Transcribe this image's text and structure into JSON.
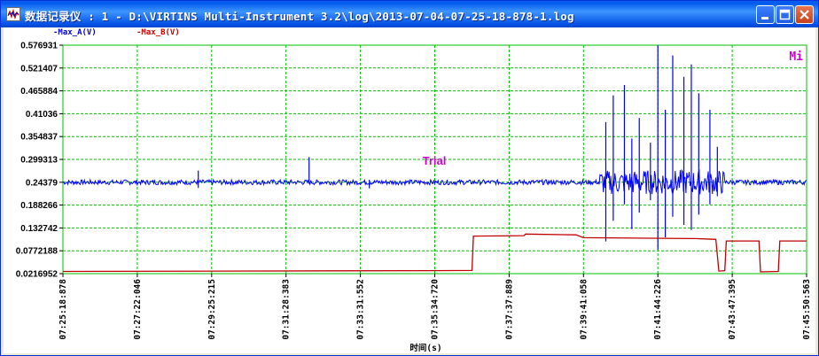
{
  "window": {
    "title": "数据记录仪 : 1 - D:\\VIRTINS Multi-Instrument 3.2\\log\\2013-07-04-07-25-18-878-1.log"
  },
  "legend": {
    "series_a": "-Max_A(V)",
    "series_b": "-Max_B(V)"
  },
  "overlay": {
    "watermark": "Trial",
    "corner_text": "Mi"
  },
  "chart_data": {
    "type": "line",
    "xlabel": "时间(s)",
    "ylabel": "",
    "x_ticks": [
      "07:25:18:878",
      "07:27:22:046",
      "07:29:25:215",
      "07:31:28:383",
      "07:33:31:552",
      "07:35:34:720",
      "07:37:37:889",
      "07:39:41:058",
      "07:41:44:226",
      "07:43:47:395",
      "07:45:50:563"
    ],
    "y_ticks": [
      "0.576931",
      "0.521407",
      "0.465884",
      "0.41036",
      "0.354837",
      "0.299313",
      "0.24379",
      "0.188266",
      "0.132742",
      "0.0772188",
      "0.0216952"
    ],
    "ylim": [
      0.0216952,
      0.576931
    ],
    "grid": true,
    "series": [
      {
        "name": "Max_A(V)",
        "color": "#0000ff",
        "baseline": 0.2438,
        "spikes": [
          {
            "t": 0.182,
            "up": 0.272,
            "down": 0.23
          },
          {
            "t": 0.331,
            "up": 0.305,
            "down": 0.24
          },
          {
            "t": 0.412,
            "up": 0.25,
            "down": 0.229
          },
          {
            "t": 0.73,
            "up": 0.39,
            "down": 0.1
          },
          {
            "t": 0.74,
            "up": 0.455,
            "down": 0.15
          },
          {
            "t": 0.755,
            "up": 0.48,
            "down": 0.19
          },
          {
            "t": 0.765,
            "up": 0.35,
            "down": 0.13
          },
          {
            "t": 0.775,
            "up": 0.4,
            "down": 0.17
          },
          {
            "t": 0.79,
            "up": 0.34,
            "down": 0.2
          },
          {
            "t": 0.8,
            "up": 0.576,
            "down": 0.08
          },
          {
            "t": 0.81,
            "up": 0.42,
            "down": 0.11
          },
          {
            "t": 0.82,
            "up": 0.552,
            "down": 0.16
          },
          {
            "t": 0.835,
            "up": 0.5,
            "down": 0.14
          },
          {
            "t": 0.845,
            "up": 0.53,
            "down": 0.128
          },
          {
            "t": 0.855,
            "up": 0.46,
            "down": 0.165
          },
          {
            "t": 0.87,
            "up": 0.42,
            "down": 0.19
          },
          {
            "t": 0.88,
            "up": 0.33,
            "down": 0.21
          }
        ]
      },
      {
        "name": "Max_B(V)",
        "color": "#c00000",
        "points": [
          [
            0.0,
            0.027
          ],
          [
            0.5,
            0.029
          ],
          [
            0.55,
            0.0295
          ],
          [
            0.552,
            0.113
          ],
          [
            0.62,
            0.114
          ],
          [
            0.622,
            0.118
          ],
          [
            0.69,
            0.116
          ],
          [
            0.7,
            0.109
          ],
          [
            0.85,
            0.107
          ],
          [
            0.878,
            0.105
          ],
          [
            0.882,
            0.028
          ],
          [
            0.89,
            0.029
          ],
          [
            0.892,
            0.101
          ],
          [
            0.936,
            0.101
          ],
          [
            0.938,
            0.026
          ],
          [
            0.962,
            0.027
          ],
          [
            0.964,
            0.101
          ],
          [
            1.0,
            0.101
          ]
        ]
      }
    ]
  }
}
